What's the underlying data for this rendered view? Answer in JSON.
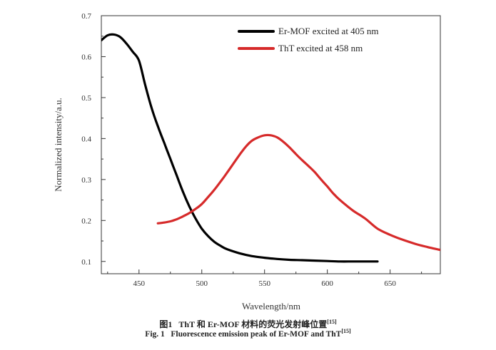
{
  "chart_data": {
    "type": "line",
    "xlabel": "Wavelength/nm",
    "ylabel": "Normalized intensity/a.u.",
    "xlim": [
      420,
      690
    ],
    "ylim": [
      0.07,
      0.7
    ],
    "xticks": [
      450,
      500,
      550,
      600,
      650
    ],
    "yticks": [
      0.1,
      0.2,
      0.3,
      0.4,
      0.5,
      0.6,
      0.7
    ],
    "legend_position": "top-right",
    "series": [
      {
        "name": "Er-MOF excited at 405 nm",
        "color": "#000000",
        "x": [
          420,
          425,
          430,
          435,
          440,
          445,
          450,
          455,
          460,
          465,
          470,
          475,
          480,
          485,
          490,
          495,
          500,
          505,
          510,
          515,
          520,
          530,
          540,
          550,
          560,
          570,
          580,
          590,
          600,
          610,
          620,
          630,
          640
        ],
        "y": [
          0.64,
          0.652,
          0.654,
          0.648,
          0.632,
          0.612,
          0.59,
          0.53,
          0.475,
          0.43,
          0.39,
          0.35,
          0.31,
          0.27,
          0.235,
          0.205,
          0.18,
          0.162,
          0.148,
          0.138,
          0.13,
          0.12,
          0.113,
          0.109,
          0.106,
          0.104,
          0.103,
          0.102,
          0.101,
          0.1,
          0.1,
          0.1,
          0.1
        ]
      },
      {
        "name": "ThT excited at 458 nm",
        "color": "#d62a2a",
        "x": [
          465,
          470,
          475,
          480,
          485,
          490,
          495,
          500,
          505,
          510,
          515,
          520,
          525,
          530,
          535,
          540,
          545,
          550,
          555,
          560,
          565,
          570,
          575,
          580,
          585,
          590,
          595,
          600,
          605,
          610,
          620,
          630,
          640,
          650,
          660,
          670,
          680,
          690
        ],
        "y": [
          0.193,
          0.195,
          0.198,
          0.203,
          0.21,
          0.218,
          0.228,
          0.24,
          0.257,
          0.275,
          0.295,
          0.316,
          0.338,
          0.36,
          0.38,
          0.395,
          0.403,
          0.408,
          0.408,
          0.403,
          0.392,
          0.378,
          0.362,
          0.347,
          0.333,
          0.318,
          0.3,
          0.283,
          0.265,
          0.25,
          0.225,
          0.205,
          0.18,
          0.165,
          0.153,
          0.143,
          0.135,
          0.128
        ]
      }
    ]
  },
  "captions": {
    "cn_prefix": "图1",
    "cn_text": "ThT 和 Er-MOF 材料的荧光发射峰位置",
    "cn_ref": "[15]",
    "en_prefix": "Fig. 1",
    "en_text": "Fluorescence emission peak of Er-MOF and ThT",
    "en_ref": "[15]"
  }
}
